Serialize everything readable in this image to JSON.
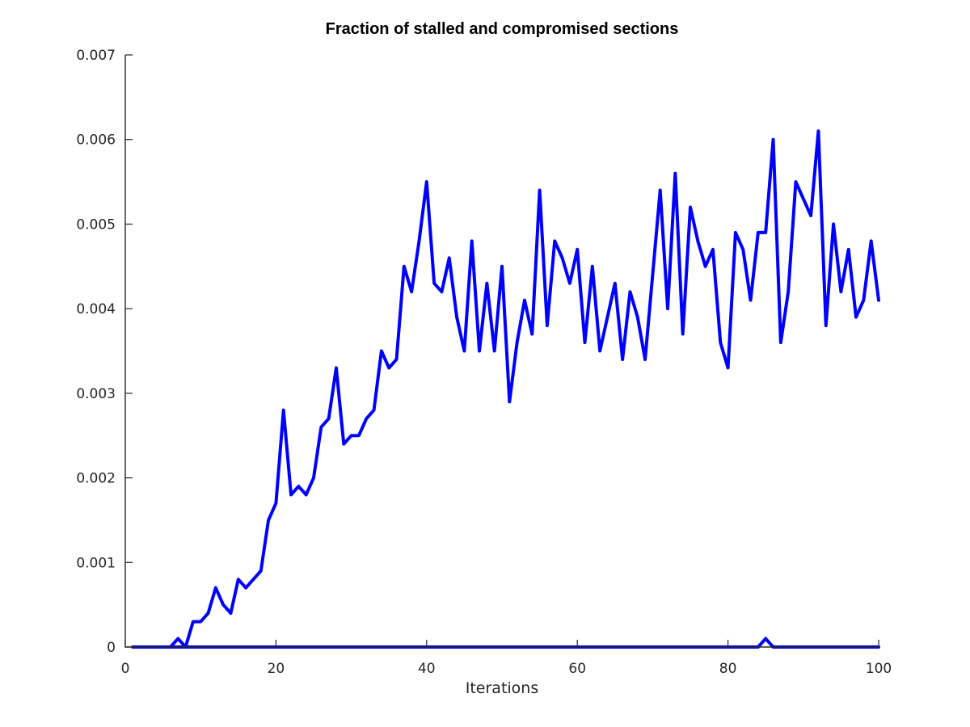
{
  "chart_data": {
    "type": "line",
    "title": "Fraction of stalled and compromised sections",
    "xlabel": "Iterations",
    "ylabel": "",
    "xlim": [
      0,
      100
    ],
    "ylim": [
      0,
      0.007
    ],
    "xticks": [
      0,
      20,
      40,
      60,
      80,
      100
    ],
    "yticks": [
      0,
      0.001,
      0.002,
      0.003,
      0.004,
      0.005,
      0.006,
      0.007
    ],
    "xtick_labels": [
      "0",
      "20",
      "40",
      "60",
      "80",
      "100"
    ],
    "ytick_labels": [
      "0",
      "0.001",
      "0.002",
      "0.003",
      "0.004",
      "0.005",
      "0.006",
      "0.007"
    ],
    "grid": false,
    "legend": "none",
    "line_color": "#0000ff",
    "series": [
      {
        "x": [
          1,
          2,
          3,
          4,
          5,
          6,
          7,
          8,
          9,
          10,
          11,
          12,
          13,
          14,
          15,
          16,
          17,
          18,
          19,
          20,
          21,
          22,
          23,
          24,
          25,
          26,
          27,
          28,
          29,
          30,
          31,
          32,
          33,
          34,
          35,
          36,
          37,
          38,
          39,
          40,
          41,
          42,
          43,
          44,
          45,
          46,
          47,
          48,
          49,
          50,
          51,
          52,
          53,
          54,
          55,
          56,
          57,
          58,
          59,
          60,
          61,
          62,
          63,
          64,
          65,
          66,
          67,
          68,
          69,
          70,
          71,
          72,
          73,
          74,
          75,
          76,
          77,
          78,
          79,
          80,
          81,
          82,
          83,
          84,
          85,
          86,
          87,
          88,
          89,
          90,
          91,
          92,
          93,
          94,
          95,
          96,
          97,
          98,
          99,
          100
        ],
        "values": [
          0,
          0,
          0,
          0,
          0,
          0,
          0.0001,
          0,
          0.0003,
          0.0003,
          0.0004,
          0.0007,
          0.0005,
          0.0004,
          0.0008,
          0.0007,
          0.0008,
          0.0009,
          0.0015,
          0.0017,
          0.0028,
          0.0018,
          0.0019,
          0.0018,
          0.002,
          0.0026,
          0.0027,
          0.0033,
          0.0024,
          0.0025,
          0.0025,
          0.0027,
          0.0028,
          0.0035,
          0.0033,
          0.0034,
          0.0045,
          0.0042,
          0.0048,
          0.0055,
          0.0043,
          0.0042,
          0.0046,
          0.0039,
          0.0035,
          0.0048,
          0.0035,
          0.0043,
          0.0035,
          0.0045,
          0.0029,
          0.0036,
          0.0041,
          0.0037,
          0.0054,
          0.0038,
          0.0048,
          0.0046,
          0.0043,
          0.0047,
          0.0036,
          0.0045,
          0.0035,
          0.0039,
          0.0043,
          0.0034,
          0.0042,
          0.0039,
          0.0034,
          0.0044,
          0.0054,
          0.004,
          0.0056,
          0.0037,
          0.0052,
          0.0048,
          0.0045,
          0.0047,
          0.0036,
          0.0033,
          0.0049,
          0.0047,
          0.0041,
          0.0049,
          0.0049,
          0.006,
          0.0036,
          0.0042,
          0.0055,
          0.0053,
          0.0051,
          0.0061,
          0.0038,
          0.005,
          0.0042,
          0.0047,
          0.0039,
          0.0041,
          0.0048,
          0.0041
        ]
      },
      {
        "x": [
          1,
          2,
          3,
          4,
          5,
          6,
          7,
          8,
          9,
          10,
          11,
          12,
          13,
          14,
          15,
          16,
          17,
          18,
          19,
          20,
          21,
          22,
          23,
          24,
          25,
          26,
          27,
          28,
          29,
          30,
          31,
          32,
          33,
          34,
          35,
          36,
          37,
          38,
          39,
          40,
          41,
          42,
          43,
          44,
          45,
          46,
          47,
          48,
          49,
          50,
          51,
          52,
          53,
          54,
          55,
          56,
          57,
          58,
          59,
          60,
          61,
          62,
          63,
          64,
          65,
          66,
          67,
          68,
          69,
          70,
          71,
          72,
          73,
          74,
          75,
          76,
          77,
          78,
          79,
          80,
          81,
          82,
          83,
          84,
          85,
          86,
          87,
          88,
          89,
          90,
          91,
          92,
          93,
          94,
          95,
          96,
          97,
          98,
          99,
          100
        ],
        "values": [
          0,
          0,
          0,
          0,
          0,
          0,
          0,
          0,
          0,
          0,
          0,
          0,
          0,
          0,
          0,
          0,
          0,
          0,
          0,
          0,
          0,
          0,
          0,
          0,
          0,
          0,
          0,
          0,
          0,
          0,
          0,
          0,
          0,
          0,
          0,
          0,
          0,
          0,
          0,
          0,
          0,
          0,
          0,
          0,
          0,
          0,
          0,
          0,
          0,
          0,
          0,
          0,
          0,
          0,
          0,
          0,
          0,
          0,
          0,
          0,
          0,
          0,
          0,
          0,
          0,
          0,
          0,
          0,
          0,
          0,
          0,
          0,
          0,
          0,
          0,
          0,
          0,
          0,
          0,
          0,
          0,
          0,
          0,
          0,
          0.0001,
          0,
          0,
          0,
          0,
          0,
          0,
          0,
          0,
          0,
          0,
          0,
          0,
          0,
          0,
          0
        ]
      }
    ]
  }
}
